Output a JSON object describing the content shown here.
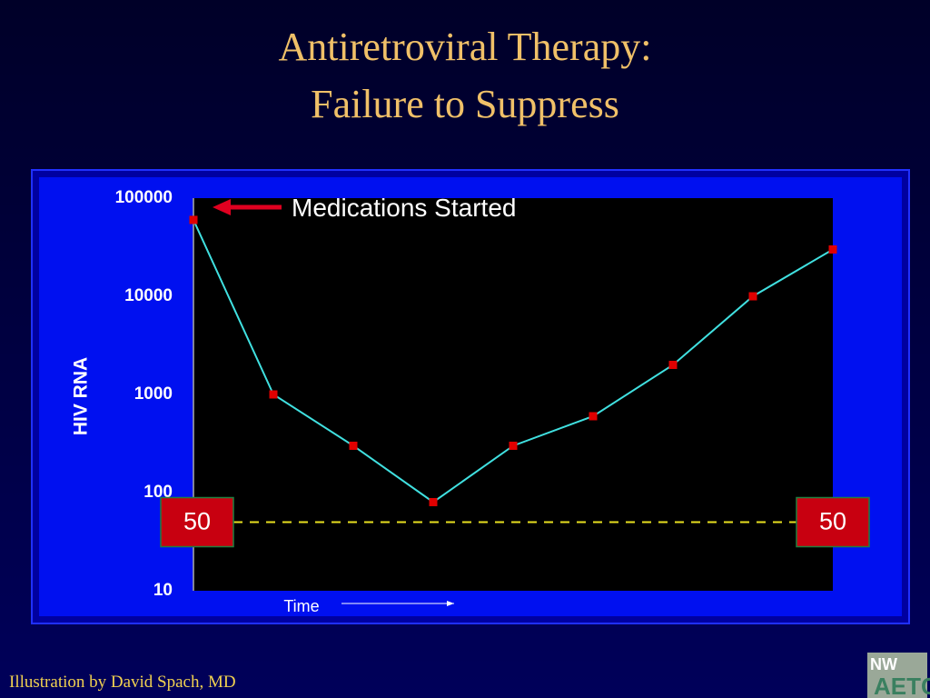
{
  "chart_data": {
    "type": "line",
    "title": "Antiretroviral Therapy:",
    "subtitle": "Failure to Suppress",
    "y_label": "HIV RNA",
    "x_label": "Time",
    "annotation": "Medications Started",
    "categories": [
      null,
      null,
      null,
      null,
      null,
      null,
      null,
      null,
      null
    ],
    "values": [
      60000,
      1000,
      300,
      80,
      300,
      600,
      2000,
      10000,
      30000
    ],
    "line_color": "#40e0e0",
    "marker_color": "#e00000",
    "ylim": [
      10,
      100000
    ],
    "yticks": [
      10,
      100,
      1000,
      10000,
      100000
    ],
    "log_scale": true,
    "grid": false,
    "reference_line": 50,
    "reference_color": "#e8e020"
  },
  "footer": "Illustration by David Spach, MD",
  "logo": {
    "top": "NW",
    "bottom": "AETC"
  }
}
